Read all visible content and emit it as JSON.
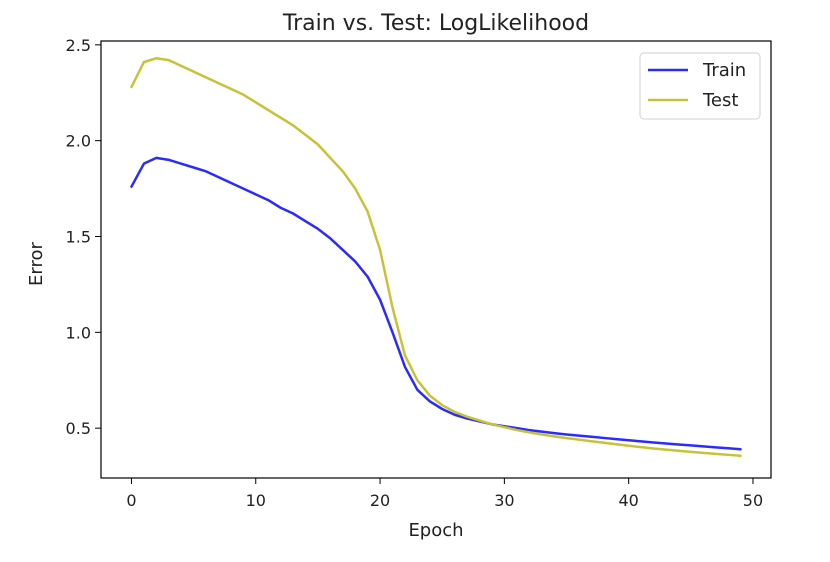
{
  "chart_data": {
    "type": "line",
    "title": "Train vs. Test: LogLikelihood",
    "xlabel": "Epoch",
    "ylabel": "Error",
    "xlim": [
      -2.45,
      51.45
    ],
    "ylim": [
      0.24,
      2.52
    ],
    "xticks": [
      0,
      10,
      20,
      30,
      40,
      50
    ],
    "yticks": [
      0.5,
      1.0,
      1.5,
      2.0,
      2.5
    ],
    "xtick_labels": [
      "0",
      "10",
      "20",
      "30",
      "40",
      "50"
    ],
    "ytick_labels": [
      "0.5",
      "1.0",
      "1.5",
      "2.0",
      "2.5"
    ],
    "grid": false,
    "legend_position": "top-right",
    "x": [
      0,
      1,
      2,
      3,
      4,
      5,
      6,
      7,
      8,
      9,
      10,
      11,
      12,
      13,
      14,
      15,
      16,
      17,
      18,
      19,
      20,
      21,
      22,
      23,
      24,
      25,
      26,
      27,
      28,
      29,
      30,
      31,
      32,
      33,
      34,
      35,
      36,
      37,
      38,
      39,
      40,
      41,
      42,
      43,
      44,
      45,
      46,
      47,
      48,
      49
    ],
    "series": [
      {
        "name": "Train",
        "color": "#2b2bff",
        "values": [
          1.76,
          1.88,
          1.91,
          1.9,
          1.88,
          1.86,
          1.84,
          1.81,
          1.78,
          1.75,
          1.72,
          1.69,
          1.65,
          1.62,
          1.58,
          1.54,
          1.49,
          1.43,
          1.37,
          1.29,
          1.17,
          1.0,
          0.82,
          0.7,
          0.64,
          0.6,
          0.57,
          0.55,
          0.535,
          0.52,
          0.51,
          0.5,
          0.49,
          0.482,
          0.474,
          0.467,
          0.461,
          0.455,
          0.449,
          0.443,
          0.437,
          0.431,
          0.425,
          0.42,
          0.415,
          0.41,
          0.405,
          0.4,
          0.395,
          0.39
        ]
      },
      {
        "name": "Test",
        "color": "#c8c238",
        "values": [
          2.28,
          2.41,
          2.43,
          2.42,
          2.39,
          2.36,
          2.33,
          2.3,
          2.27,
          2.24,
          2.2,
          2.16,
          2.12,
          2.08,
          2.03,
          1.98,
          1.91,
          1.84,
          1.75,
          1.63,
          1.43,
          1.13,
          0.88,
          0.75,
          0.67,
          0.62,
          0.585,
          0.56,
          0.54,
          0.52,
          0.505,
          0.49,
          0.478,
          0.467,
          0.457,
          0.448,
          0.44,
          0.432,
          0.424,
          0.416,
          0.408,
          0.401,
          0.394,
          0.388,
          0.382,
          0.376,
          0.371,
          0.366,
          0.361,
          0.356
        ]
      }
    ]
  }
}
